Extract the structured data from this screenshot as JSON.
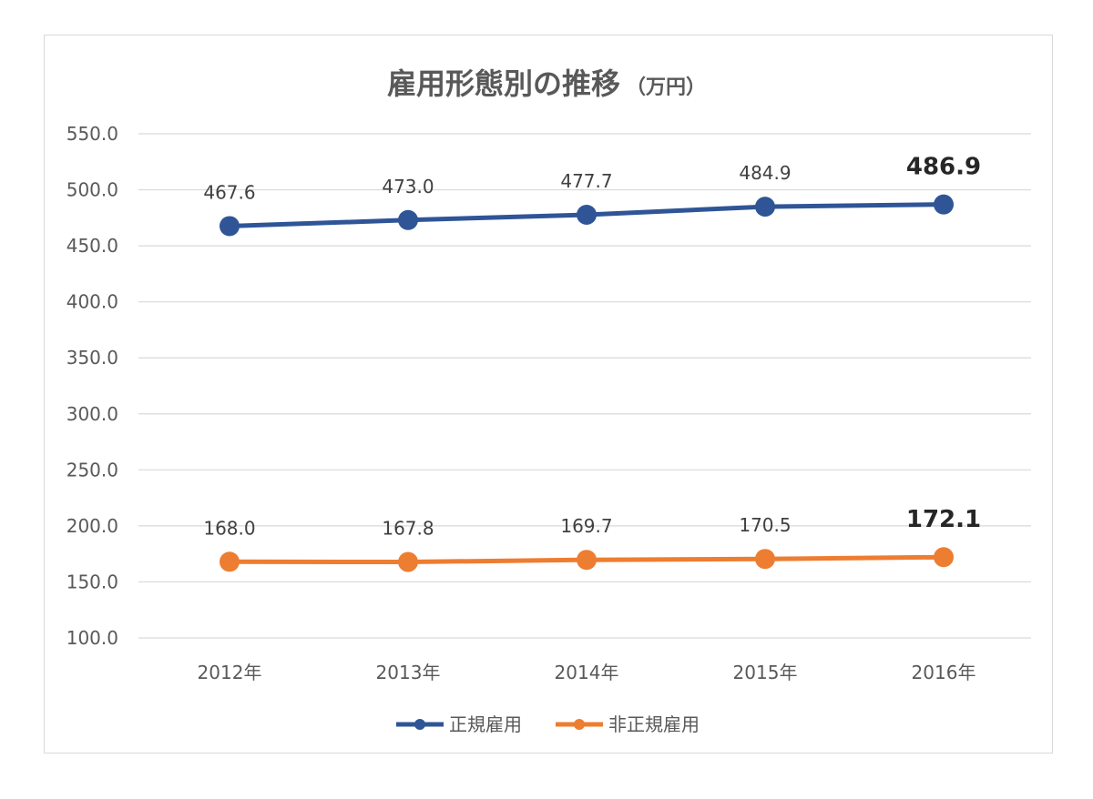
{
  "chart_data": {
    "type": "line",
    "title": "雇用形態別の推移",
    "title_unit": "（万円）",
    "categories": [
      "2012年",
      "2013年",
      "2014年",
      "2015年",
      "2016年"
    ],
    "ylim": [
      100,
      550
    ],
    "yticks": [
      "550.0",
      "500.0",
      "450.0",
      "400.0",
      "350.0",
      "300.0",
      "250.0",
      "200.0",
      "150.0",
      "100.0"
    ],
    "grid": true,
    "legend_position": "bottom",
    "series": [
      {
        "name": "正規雇用",
        "color": "#2f5597",
        "values": [
          467.6,
          473.0,
          477.7,
          484.9,
          486.9
        ],
        "labels": [
          "467.6",
          "473.0",
          "477.7",
          "484.9",
          "486.9"
        ]
      },
      {
        "name": "非正規雇用",
        "color": "#ed7d31",
        "values": [
          168.0,
          167.8,
          169.7,
          170.5,
          172.1
        ],
        "labels": [
          "168.0",
          "167.8",
          "169.7",
          "170.5",
          "172.1"
        ]
      }
    ],
    "emphasized_label_index": 4
  }
}
